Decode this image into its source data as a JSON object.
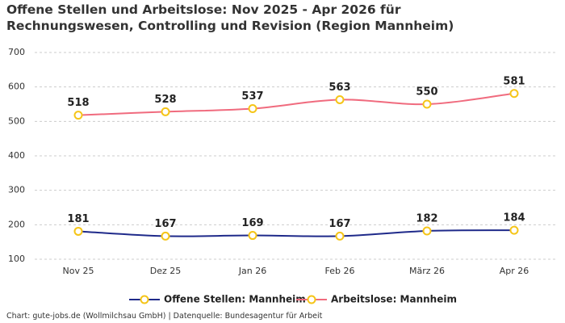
{
  "chart_data": {
    "type": "line",
    "title": "Offene Stellen und Arbeitslose: Nov 2025 - Apr 2026 für Rechnungswesen, Controlling und Revision (Region Mannheim)",
    "categories": [
      "Nov 25",
      "Dez 25",
      "Jan 26",
      "Feb 26",
      "März 26",
      "Apr 26"
    ],
    "series": [
      {
        "name": "Offene Stellen: Mannheim",
        "color": "#1f2a8a",
        "values": [
          181,
          167,
          169,
          167,
          182,
          184
        ]
      },
      {
        "name": "Arbeitslose: Mannheim",
        "color": "#f06b7e",
        "values": [
          518,
          528,
          537,
          563,
          550,
          581
        ]
      }
    ],
    "marker_color": "#f5c518",
    "ylim": [
      100,
      700
    ],
    "yticks": [
      100,
      200,
      300,
      400,
      500,
      600,
      700
    ],
    "grid": true,
    "source": "Chart: gute-jobs.de (Wollmilchsau GmbH) | Datenquelle: Bundesagentur für Arbeit"
  }
}
